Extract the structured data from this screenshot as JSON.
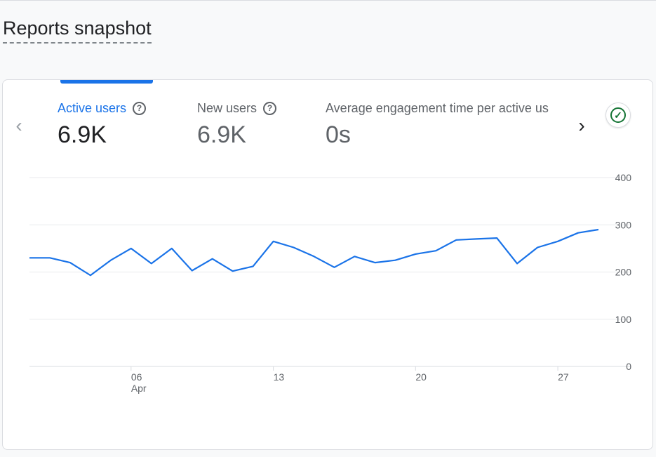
{
  "page": {
    "title": "Reports snapshot"
  },
  "metrics": [
    {
      "label": "Active users",
      "value": "6.9K",
      "has_help": true
    },
    {
      "label": "New users",
      "value": "6.9K",
      "has_help": true
    },
    {
      "label": "Average engagement time per active us",
      "value": "0s",
      "has_help": false
    }
  ],
  "icons": {
    "prev": "chevron-left-icon",
    "next": "chevron-right-icon",
    "help": "help-circle-icon",
    "status": "check-circle-icon"
  },
  "colors": {
    "accent": "#1a73e8",
    "status_ok": "#137333"
  },
  "chart_data": {
    "type": "line",
    "series": [
      {
        "values": [
          230,
          230,
          220,
          193,
          225,
          250,
          218,
          250,
          203,
          228,
          202,
          212,
          265,
          252,
          233,
          210,
          233,
          220,
          225,
          238,
          245,
          268,
          270,
          272,
          218,
          252,
          265,
          283,
          290
        ]
      }
    ],
    "x_ticks": [
      {
        "index": 5,
        "label": "06",
        "sublabel": "Apr"
      },
      {
        "index": 12,
        "label": "13",
        "sublabel": ""
      },
      {
        "index": 19,
        "label": "20",
        "sublabel": ""
      },
      {
        "index": 26,
        "label": "27",
        "sublabel": ""
      }
    ],
    "y_ticks": [
      0,
      100,
      200,
      300,
      400
    ],
    "ylim": [
      0,
      400
    ],
    "grid": true,
    "line_color": "#1a73e8"
  }
}
